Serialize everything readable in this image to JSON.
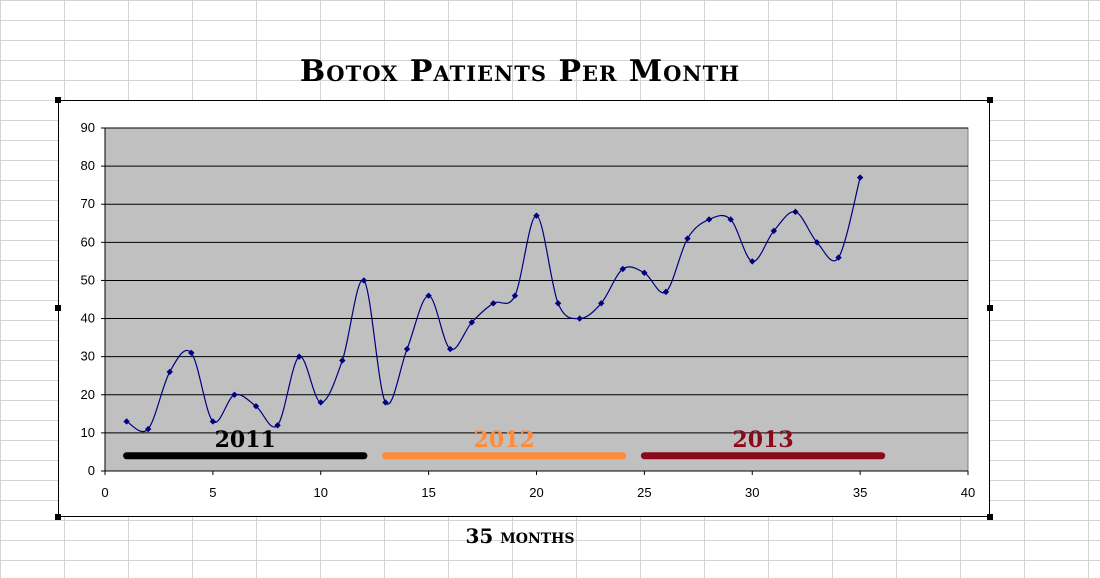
{
  "chart_data": {
    "type": "line",
    "title": "Botox Patients Per Month",
    "xlabel": "35 months",
    "ylabel": "",
    "xlim": [
      0,
      40
    ],
    "ylim": [
      0,
      90
    ],
    "x_ticks": [
      0,
      5,
      10,
      15,
      20,
      25,
      30,
      35,
      40
    ],
    "y_ticks": [
      0,
      10,
      20,
      30,
      40,
      50,
      60,
      70,
      80,
      90
    ],
    "grid": "horizontal",
    "legend": "none",
    "plot_background": "#c0c0c0",
    "series": [
      {
        "color": "#000080",
        "x": [
          1,
          2,
          3,
          4,
          5,
          6,
          7,
          8,
          9,
          10,
          11,
          12,
          13,
          14,
          15,
          16,
          17,
          18,
          19,
          20,
          21,
          22,
          23,
          24,
          25,
          26,
          27,
          28,
          29,
          30,
          31,
          32,
          33,
          34,
          35
        ],
        "values": [
          13,
          11,
          26,
          31,
          13,
          20,
          17,
          12,
          30,
          18,
          29,
          50,
          18,
          32,
          46,
          32,
          39,
          44,
          46,
          67,
          44,
          40,
          44,
          53,
          52,
          47,
          61,
          66,
          66,
          55,
          63,
          68,
          60,
          56,
          77
        ]
      }
    ],
    "annotations": [
      {
        "text": "2011",
        "x_start": 1,
        "x_end": 12,
        "y": 4,
        "color": "#000000"
      },
      {
        "text": "2012",
        "x_start": 13,
        "x_end": 24,
        "y": 4,
        "color": "#ff8c3a"
      },
      {
        "text": "2013",
        "x_start": 25,
        "x_end": 36,
        "y": 4,
        "color": "#8b0a1a"
      }
    ]
  }
}
